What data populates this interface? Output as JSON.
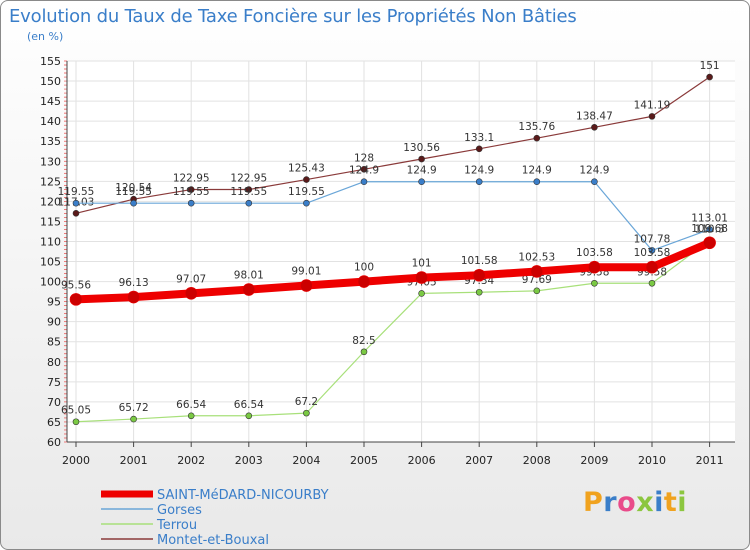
{
  "header": {
    "title": "Evolution du Taux de Taxe Foncière sur les Propriétés Non Bâties",
    "unit": "(en %)"
  },
  "logo": {
    "text": "Proxiti",
    "colors": [
      "#f0a21e",
      "#3a7ec9",
      "#e94b8a",
      "#8cc63f",
      "#3a7ec9",
      "#f0a21e",
      "#8cc63f"
    ]
  },
  "chart_data": {
    "type": "line",
    "title": "Evolution du Taux de Taxe Foncière sur les Propriétés Non Bâties",
    "ylabel": "(en %)",
    "xlabel": "",
    "ylim": [
      60,
      155
    ],
    "yticks": [
      60,
      65,
      70,
      75,
      80,
      85,
      90,
      95,
      100,
      105,
      110,
      115,
      120,
      125,
      130,
      135,
      140,
      145,
      150,
      155
    ],
    "categories": [
      "2000",
      "2001",
      "2002",
      "2003",
      "2004",
      "2005",
      "2006",
      "2007",
      "2008",
      "2009",
      "2010",
      "2011"
    ],
    "grid": true,
    "legend_position": "bottom-left",
    "series": [
      {
        "name": "Montet-et-Bouxal",
        "color": "#8a3a3a",
        "point": "#5a1a1a",
        "width": 1.2,
        "marker": 3,
        "values": [
          117.03,
          120.54,
          122.95,
          122.95,
          125.43,
          128,
          130.56,
          133.1,
          135.76,
          138.47,
          141.19,
          151
        ],
        "labels": [
          "117.03",
          "120.54",
          "122.95",
          "122.95",
          "125.43",
          "128",
          "130.56",
          "133.1",
          "135.76",
          "138.47",
          "141.19",
          "151"
        ]
      },
      {
        "name": "Gorses",
        "color": "#6aa6d8",
        "point": "#3a7ec9",
        "width": 1.2,
        "marker": 3,
        "values": [
          119.55,
          119.55,
          119.55,
          119.55,
          119.55,
          124.9,
          124.9,
          124.9,
          124.9,
          124.9,
          107.78,
          113.01
        ],
        "labels": [
          "119.55",
          "119.55",
          "119.55",
          "119.55",
          "119.55",
          "124.9",
          "124.9",
          "124.9",
          "124.9",
          "124.9",
          "107.78",
          "113.01"
        ]
      },
      {
        "name": "Terrou",
        "color": "#a8e07a",
        "point": "#7ac943",
        "width": 1.2,
        "marker": 3,
        "values": [
          65.05,
          65.72,
          66.54,
          66.54,
          67.2,
          82.5,
          97.05,
          97.34,
          97.69,
          99.58,
          99.58,
          110.3
        ],
        "labels": [
          "65.05",
          "65.72",
          "66.54",
          "66.54",
          "67.2",
          "82.5",
          "97.05",
          "97.34",
          "97.69",
          "99.58",
          "99.58",
          "110.3"
        ]
      },
      {
        "name": "SAINT-MéDARD-NICOURBY",
        "color": "#ee0000",
        "point": "#cc0000",
        "width": 8,
        "marker": 6,
        "values": [
          95.56,
          96.13,
          97.07,
          98.01,
          99.01,
          100,
          101,
          101.58,
          102.53,
          103.58,
          103.58,
          109.68
        ],
        "labels": [
          "95.56",
          "96.13",
          "97.07",
          "98.01",
          "99.01",
          "100",
          "101",
          "101.58",
          "102.53",
          "103.58",
          "103.58",
          "109.68"
        ]
      }
    ],
    "legend": [
      "SAINT-MéDARD-NICOURBY",
      "Gorses",
      "Terrou",
      "Montet-et-Bouxal"
    ]
  }
}
